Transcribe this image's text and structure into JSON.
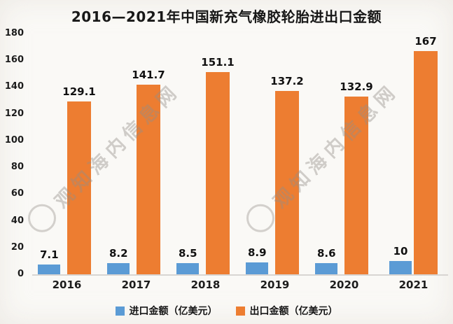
{
  "chart_data": {
    "type": "bar",
    "title": "2016—2021年中国新充气橡胶轮胎进出口金额",
    "categories": [
      "2016",
      "2017",
      "2018",
      "2019",
      "2020",
      "2021"
    ],
    "series": [
      {
        "name": "进口金额（亿美元）",
        "color": "#5B9BD5",
        "values": [
          7.1,
          8.2,
          8.5,
          8.9,
          8.6,
          10
        ]
      },
      {
        "name": "出口金额（亿美元）",
        "color": "#ED7D31",
        "values": [
          129.1,
          141.7,
          151.1,
          137.2,
          132.9,
          167
        ]
      }
    ],
    "xlabel": "",
    "ylabel": "",
    "ylim": [
      0,
      180
    ],
    "yticks": [
      0,
      20,
      40,
      60,
      80,
      100,
      120,
      140,
      160,
      180
    ],
    "grid": false,
    "legend_position": "bottom",
    "value_labels": true
  },
  "watermark": {
    "text": "观知海内信息网"
  },
  "colors": {
    "background": "#faf9f6",
    "axis_line": "#d8d5d2",
    "text": "#1c1c1c",
    "import_blue": "#5B9BD5",
    "export_orange": "#ED7D31"
  }
}
